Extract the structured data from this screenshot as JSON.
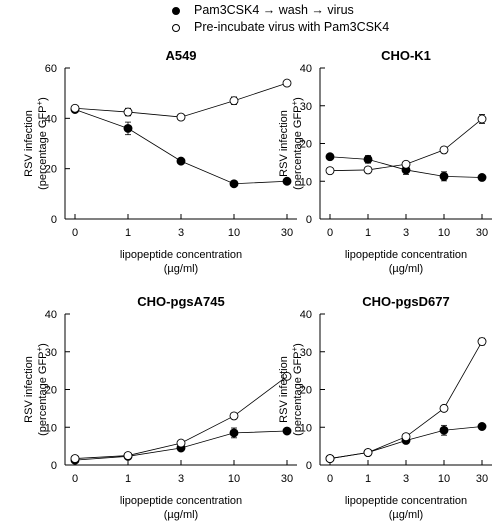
{
  "legend": [
    {
      "label": "Pam3CSK4 → wash → virus",
      "marker": "filled-circle"
    },
    {
      "label": "Pre-incubate virus with Pam3CSK4",
      "marker": "open-circle"
    }
  ],
  "chart_data": [
    {
      "type": "line",
      "title": "A549",
      "xlabel": "lipopeptide concentration",
      "xlabel_unit": "(µg/ml)",
      "ylabel": "RSV infection",
      "ylabel_sub": "(percentage GFP",
      "ylabel_sup": "+",
      "ylabel_close": ")",
      "categories": [
        "0",
        "1",
        "3",
        "10",
        "30"
      ],
      "ylim": [
        0,
        60
      ],
      "yticks": [
        0,
        20,
        40,
        60
      ],
      "series": [
        {
          "marker": "filled",
          "values": [
            43.5,
            36,
            23,
            14,
            15
          ],
          "errors": [
            1,
            2.5,
            0.8,
            0.6,
            0.6
          ]
        },
        {
          "marker": "open",
          "values": [
            44,
            42.5,
            40.5,
            47,
            54
          ],
          "errors": [
            1,
            1.5,
            0.8,
            1.5,
            0.6
          ]
        }
      ]
    },
    {
      "type": "line",
      "title": "CHO-K1",
      "xlabel": "lipopeptide concentration",
      "xlabel_unit": "(µg/ml)",
      "ylabel": "RSV infection",
      "ylabel_sub": "(percentage GFP",
      "ylabel_sup": "+",
      "ylabel_close": ")",
      "categories": [
        "0",
        "1",
        "3",
        "10",
        "30"
      ],
      "ylim": [
        0,
        40
      ],
      "yticks": [
        0,
        10,
        20,
        30,
        40
      ],
      "series": [
        {
          "marker": "filled",
          "values": [
            16.5,
            15.8,
            13,
            11.3,
            11
          ],
          "errors": [
            0.5,
            1,
            1.2,
            1.2,
            0.5
          ]
        },
        {
          "marker": "open",
          "values": [
            12.8,
            13,
            14.5,
            18.3,
            26.5
          ],
          "errors": [
            0.4,
            0.4,
            0.4,
            0.8,
            1.2
          ]
        }
      ]
    },
    {
      "type": "line",
      "title": "CHO-pgsA745",
      "xlabel": "lipopeptide concentration",
      "xlabel_unit": "(µg/ml)",
      "ylabel": "RSV infection",
      "ylabel_sub": "(percentage GFP",
      "ylabel_sup": "+",
      "ylabel_close": ")",
      "categories": [
        "0",
        "1",
        "3",
        "10",
        "30"
      ],
      "ylim": [
        0,
        40
      ],
      "yticks": [
        0,
        10,
        20,
        30,
        40
      ],
      "series": [
        {
          "marker": "filled",
          "values": [
            1.3,
            2.3,
            4.5,
            8.5,
            9
          ],
          "errors": [
            0.3,
            0.3,
            0.5,
            1.3,
            0.4
          ]
        },
        {
          "marker": "open",
          "values": [
            1.7,
            2.5,
            5.8,
            13,
            23.5
          ],
          "errors": [
            0.3,
            0.3,
            0.4,
            0.4,
            0.5
          ]
        }
      ]
    },
    {
      "type": "line",
      "title": "CHO-pgsD677",
      "xlabel": "lipopeptide concentration",
      "xlabel_unit": "(µg/ml)",
      "ylabel": "RSV infection",
      "ylabel_sub": "(percentage GFP",
      "ylabel_sup": "+",
      "ylabel_close": ")",
      "categories": [
        "0",
        "1",
        "3",
        "10",
        "30"
      ],
      "ylim": [
        0,
        40
      ],
      "yticks": [
        0,
        10,
        20,
        30,
        40
      ],
      "series": [
        {
          "marker": "filled",
          "values": [
            1.7,
            3.3,
            6.5,
            9.2,
            10.2
          ],
          "errors": [
            0.3,
            0.3,
            0.5,
            1.3,
            0.5
          ]
        },
        {
          "marker": "open",
          "values": [
            1.7,
            3.3,
            7.5,
            15,
            32.7
          ],
          "errors": [
            0.3,
            0.3,
            0.4,
            0.5,
            0.9
          ]
        }
      ]
    }
  ]
}
